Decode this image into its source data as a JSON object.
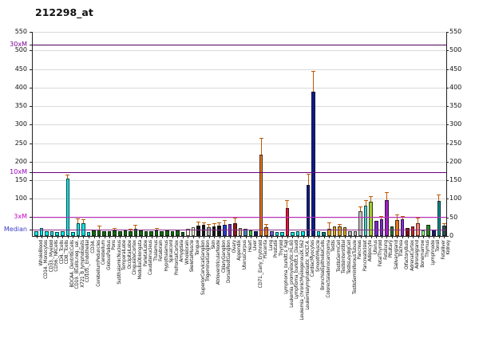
{
  "title": "212298_at",
  "axes": {
    "left_labels": [
      {
        "text": "550",
        "value": 550,
        "color": "#111111"
      },
      {
        "text": "30xM",
        "value": 516,
        "color": "#7b0099"
      },
      {
        "text": "500",
        "value": 500,
        "color": "#111111"
      },
      {
        "text": "450",
        "value": 450,
        "color": "#111111"
      },
      {
        "text": "400",
        "value": 400,
        "color": "#111111"
      },
      {
        "text": "350",
        "value": 350,
        "color": "#111111"
      },
      {
        "text": "300",
        "value": 300,
        "color": "#111111"
      },
      {
        "text": "250",
        "value": 250,
        "color": "#111111"
      },
      {
        "text": "200",
        "value": 200,
        "color": "#111111"
      },
      {
        "text": "10xM",
        "value": 172,
        "color": "#9900bb"
      },
      {
        "text": "150",
        "value": 150,
        "color": "#111111"
      },
      {
        "text": "100",
        "value": 100,
        "color": "#111111"
      },
      {
        "text": "3xM",
        "value": 52,
        "color": "#cc00cc"
      },
      {
        "text": "Median",
        "value": 17,
        "color": "#3b3bc8"
      }
    ],
    "right_labels": [
      {
        "text": "550",
        "value": 550
      },
      {
        "text": "500",
        "value": 500
      },
      {
        "text": "450",
        "value": 450
      },
      {
        "text": "400",
        "value": 400
      },
      {
        "text": "350",
        "value": 350
      },
      {
        "text": "300",
        "value": 300
      },
      {
        "text": "250",
        "value": 250
      },
      {
        "text": "200",
        "value": 200
      },
      {
        "text": "150",
        "value": 150
      },
      {
        "text": "100",
        "value": 100
      },
      {
        "text": "50",
        "value": 50
      },
      {
        "text": "0",
        "value": 0
      }
    ],
    "gridline_values": [
      50,
      100,
      150,
      200,
      250,
      300,
      350,
      400,
      450,
      500,
      550
    ]
  },
  "ref_lines": [
    {
      "label": "30xM",
      "value": 516,
      "color": "#4b0055"
    },
    {
      "label": "10xM",
      "value": 172,
      "color": "#6a0080"
    },
    {
      "label": "3xM",
      "value": 51.6,
      "color": "#c32ac3"
    },
    {
      "label": "Median",
      "value": 17.2,
      "color": "#8b2e8b"
    }
  ],
  "chart_data": {
    "type": "bar",
    "title": "212298_at",
    "xlabel": "",
    "ylabel": "",
    "ylim": [
      0,
      550
    ],
    "grid": true,
    "error_bar_color": "#c05a00",
    "columns": [
      "label",
      "value",
      "error_top",
      "color"
    ],
    "bars": [
      [
        "WholeBlood",
        13,
        null,
        "#00e8e8"
      ],
      [
        "CD14._Monocytes",
        22,
        null,
        "#00e8e8"
      ],
      [
        "CD33._Myeloid",
        13,
        null,
        "#00e8e8"
      ],
      [
        "CD56._NKCells",
        13,
        null,
        "#00e8e8"
      ],
      [
        "CD4._Tcells",
        11,
        null,
        "#00e8e8"
      ],
      [
        "CD8._Tcells",
        13,
        null,
        "#00e8e8"
      ],
      [
        "BDCA4._DentriticCells",
        155,
        163,
        "#00e8e8"
      ],
      [
        "CD19._BCells.neg._sel.",
        10,
        null,
        "#00e8e8"
      ],
      [
        "X721_B_lymphoblasts",
        35,
        45,
        "#00e8e8"
      ],
      [
        "CD105._Endothelial",
        34,
        42,
        "#00e8e8"
      ],
      [
        "CD34.",
        11,
        null,
        "#00e8e8"
      ],
      [
        "CerebellumPeduncles",
        15,
        null,
        "#0f6b0f"
      ],
      [
        "Cerebellum",
        18,
        26,
        "#0f6b0f"
      ],
      [
        "GlobusPalidus",
        12,
        null,
        "#0f6b0f"
      ],
      [
        "Pons",
        13,
        null,
        "#0f6b0f"
      ],
      [
        "SubthalamicNucleus",
        14,
        18,
        "#0f6b0f"
      ],
      [
        "TemporalLobe",
        13,
        null,
        "#0f6b0f"
      ],
      [
        "OccipitalLobe",
        14,
        null,
        "#0f6b0f"
      ],
      [
        "CingulateCortex",
        13,
        17,
        "#0f6b0f"
      ],
      [
        "MedullaOblongata",
        20,
        28,
        "#0f6b0f"
      ],
      [
        "ParietalLobe",
        16,
        null,
        "#0f6b0f"
      ],
      [
        "Caudatenucleus",
        12,
        null,
        "#0f6b0f"
      ],
      [
        "Thalamus",
        13,
        null,
        "#0f6b0f"
      ],
      [
        "Fetalbrain",
        14,
        18,
        "#0f6b0f"
      ],
      [
        "Hypothalamus",
        13,
        null,
        "#0f6b0f"
      ],
      [
        "Spinalcord",
        15,
        null,
        "#0f6b0f"
      ],
      [
        "PrefrontalCortex",
        12,
        null,
        "#0f6b0f"
      ],
      [
        "Amygdala",
        14,
        null,
        "#0f6b0f"
      ],
      [
        "Wholebrain",
        10,
        null,
        "#0f6b0f"
      ],
      [
        "SkeletalMuscle",
        19,
        null,
        "#f5efd9"
      ],
      [
        "Tongue",
        24,
        null,
        "#f5efd9"
      ],
      [
        "SuperiorCervicalGanglion",
        28,
        36,
        "#151515"
      ],
      [
        "TrigeminalGanglion",
        31,
        36,
        "#151515"
      ],
      [
        "Skin",
        24,
        30,
        "#a8a8a8"
      ],
      [
        "AtrioventricularNode",
        26,
        33,
        "#151515"
      ],
      [
        "CiliaryGanglion",
        28,
        35,
        "#151515"
      ],
      [
        "DorsalRootGanglion",
        31,
        42,
        "#2638cc"
      ],
      [
        "Ovary",
        33,
        null,
        "#8a2be2"
      ],
      [
        "Appendix",
        35,
        48,
        "#8b1a1a"
      ],
      [
        "UterusCorpus",
        22,
        null,
        "#d2b48c"
      ],
      [
        "Heart",
        20,
        null,
        "#4682b4"
      ],
      [
        "Liver",
        15,
        null,
        "#32cd32"
      ],
      [
        "CD71._Early_Erythroid",
        12,
        null,
        "#191970"
      ],
      [
        "Placenta",
        220,
        263,
        "#e8761a"
      ],
      [
        "Lung",
        24,
        30,
        "#e8761a"
      ],
      [
        "Prostate",
        12,
        null,
        "#6a5acd"
      ],
      [
        "Thyroid",
        10,
        null,
        "#00e8e8"
      ],
      [
        "Lymphoma_burkitt.s_Raji",
        10,
        null,
        "#00e8e8"
      ],
      [
        "Leukemia_promyelocytic.HL.60",
        75,
        95,
        "#e8123c"
      ],
      [
        "Lymphoma_burkitt.s_Daudi",
        10,
        null,
        "#00e8e8"
      ],
      [
        "Leukemia_chronicMyelogenousK.562",
        12,
        null,
        "#00e8e8"
      ],
      [
        "Leukemialymphoblastic_MOLT.4.",
        12,
        null,
        "#00e8e8"
      ],
      [
        "CardiacMyocytes",
        138,
        165,
        "#101a8c"
      ],
      [
        "SmoothMuscle",
        389,
        443,
        "#101a8c"
      ],
      [
        "BronchialEpithelialCells",
        12,
        null,
        "#00e8e8"
      ],
      [
        "Colorectaladenocarcinoma",
        10,
        null,
        "#008080"
      ],
      [
        "Testis",
        20,
        34,
        "#d9a31e"
      ],
      [
        "TestisGermCell",
        25,
        null,
        "#d9a31e"
      ],
      [
        "TestisInterstitial",
        25,
        30,
        "#d9a31e"
      ],
      [
        "TestisLeydigCell",
        24,
        null,
        "#d9a31e"
      ],
      [
        "TestisSeminiferousTubule",
        12,
        null,
        "#b0b0b0"
      ],
      [
        "Pancreas",
        13,
        null,
        "#b0b0b0"
      ],
      [
        "PancreaticIslet",
        67,
        78,
        "#c0c0c0"
      ],
      [
        "Adipocyte",
        82,
        95,
        "#48d1cc"
      ],
      [
        "Uterus",
        92,
        105,
        "#9acd32"
      ],
      [
        "FetalThyroid",
        40,
        null,
        "#7d26cd"
      ],
      [
        "Fetallung",
        45,
        52,
        "#7d26cd"
      ],
      [
        "Pituitary",
        97,
        117,
        "#a020c0"
      ],
      [
        "Salivarygland",
        25,
        null,
        "#1a7a1a"
      ],
      [
        "Trachea",
        42,
        55,
        "#e8761a"
      ],
      [
        "OlfactoryBulb",
        45,
        52,
        "#8a2be2"
      ],
      [
        "AdrenalCortex",
        22,
        null,
        "#8b0000"
      ],
      [
        "Adrenalgland",
        25,
        null,
        "#cc2222"
      ],
      [
        "Bonemarrow",
        35,
        48,
        "#fa8072"
      ],
      [
        "Thymus",
        15,
        null,
        "#98fb98"
      ],
      [
        "Lymphnode",
        30,
        null,
        "#228b22"
      ],
      [
        "Tonsil",
        18,
        null,
        "#191970"
      ],
      [
        "Fetalliver",
        95,
        110,
        "#008b8b"
      ],
      [
        "Kidney",
        28,
        33,
        "#2f4f4f"
      ]
    ]
  }
}
